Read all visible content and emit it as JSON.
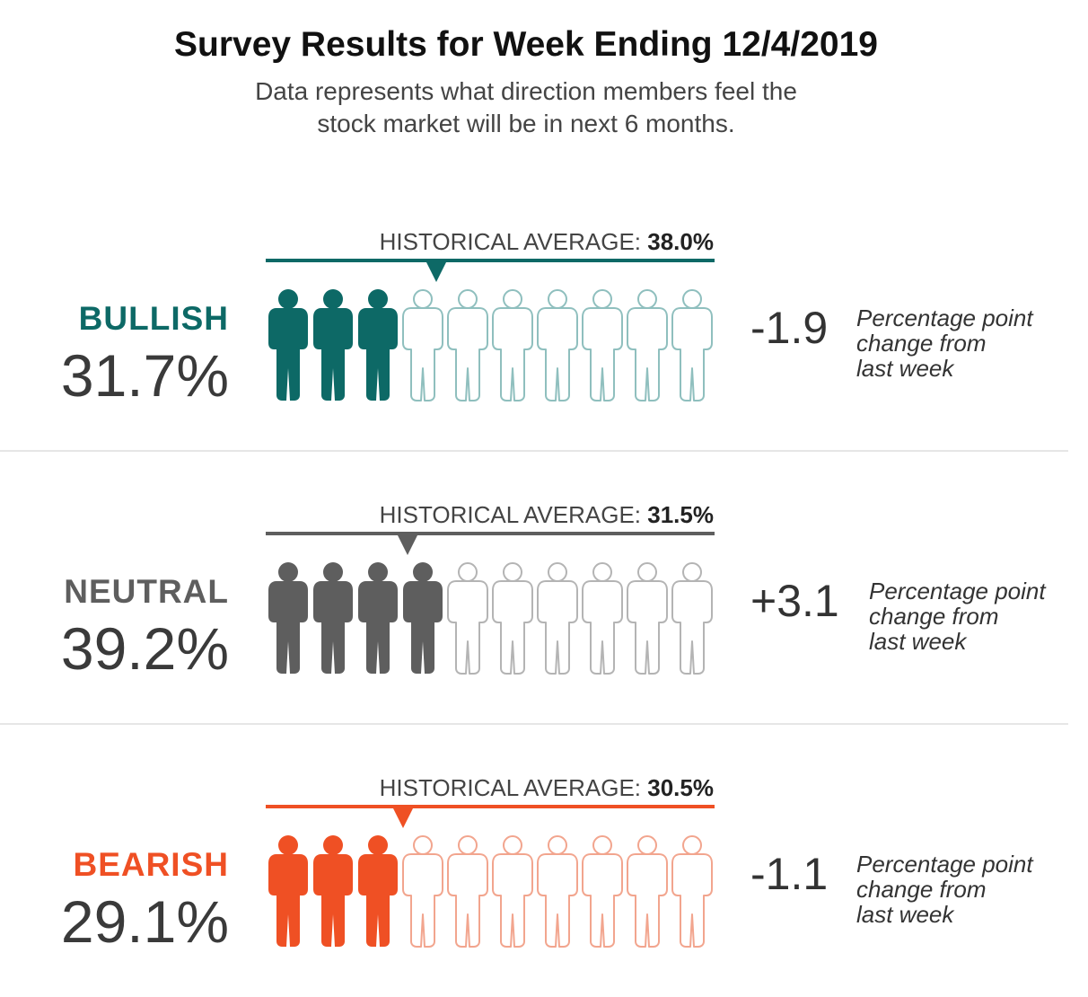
{
  "header": {
    "title": "Survey Results for Week Ending 12/4/2019",
    "subtitle_line1": "Data represents what direction members feel the",
    "subtitle_line2": "stock market will be in next 6 months."
  },
  "chart_data": {
    "type": "pictogram",
    "figures_per_row": 10,
    "hist_prefix": "HISTORICAL AVERAGE:",
    "change_note_line1": "Percentage point",
    "change_note_line2": "change from",
    "change_note_line3": "last week",
    "series": [
      {
        "name": "BULLISH",
        "value": 31.7,
        "value_label": "31.7%",
        "historical_average": 38.0,
        "historical_label": "38.0%",
        "change": -1.9,
        "change_label": "-1.9",
        "filled_figures": 3,
        "color": "#0d6966",
        "light_color": "#8fbfbe"
      },
      {
        "name": "NEUTRAL",
        "value": 39.2,
        "value_label": "39.2%",
        "historical_average": 31.5,
        "historical_label": "31.5%",
        "change": 3.1,
        "change_label": "+3.1",
        "filled_figures": 4,
        "color": "#5e5e5e",
        "light_color": "#b4b4b4"
      },
      {
        "name": "BEARISH",
        "value": 29.1,
        "value_label": "29.1%",
        "historical_average": 30.5,
        "historical_label": "30.5%",
        "change": -1.1,
        "change_label": "-1.1",
        "filled_figures": 3,
        "color": "#ef5024",
        "light_color": "#f2a58e"
      }
    ]
  }
}
